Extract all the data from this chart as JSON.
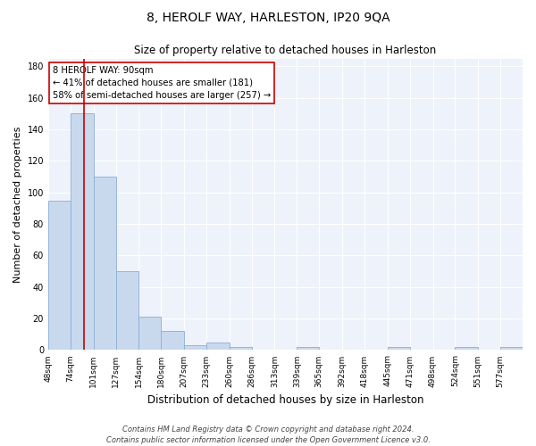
{
  "title": "8, HEROLF WAY, HARLESTON, IP20 9QA",
  "subtitle": "Size of property relative to detached houses in Harleston",
  "xlabel": "Distribution of detached houses by size in Harleston",
  "ylabel": "Number of detached properties",
  "bin_edges": [
    48,
    74,
    101,
    127,
    154,
    180,
    207,
    233,
    260,
    286,
    313,
    339,
    365,
    392,
    418,
    445,
    471,
    498,
    524,
    551,
    577,
    603
  ],
  "bin_labels": [
    "48sqm",
    "74sqm",
    "101sqm",
    "127sqm",
    "154sqm",
    "180sqm",
    "207sqm",
    "233sqm",
    "260sqm",
    "286sqm",
    "313sqm",
    "339sqm",
    "365sqm",
    "392sqm",
    "418sqm",
    "445sqm",
    "471sqm",
    "498sqm",
    "524sqm",
    "551sqm",
    "577sqm"
  ],
  "counts": [
    95,
    150,
    110,
    50,
    21,
    12,
    3,
    5,
    2,
    0,
    0,
    2,
    0,
    0,
    0,
    2,
    0,
    0,
    2,
    0,
    2
  ],
  "bar_color": "#c8d9ee",
  "bar_edge_color": "#8aaed4",
  "bar_linewidth": 0.6,
  "vline_x": 90,
  "vline_color": "#cc0000",
  "vline_linewidth": 1.2,
  "annotation_text": "8 HEROLF WAY: 90sqm\n← 41% of detached houses are smaller (181)\n58% of semi-detached houses are larger (257) →",
  "annotation_box_color": "white",
  "annotation_box_edge_color": "#cc0000",
  "annotation_fontsize": 7.2,
  "ylim": [
    0,
    185
  ],
  "yticks": [
    0,
    20,
    40,
    60,
    80,
    100,
    120,
    140,
    160,
    180
  ],
  "bg_color": "#eef2fa",
  "grid_color": "#ffffff",
  "title_fontsize": 10,
  "subtitle_fontsize": 8.5,
  "ylabel_fontsize": 8,
  "xlabel_fontsize": 8.5,
  "tick_fontsize": 6.5,
  "footer": "Contains HM Land Registry data © Crown copyright and database right 2024.\nContains public sector information licensed under the Open Government Licence v3.0.",
  "footer_fontsize": 6.0
}
